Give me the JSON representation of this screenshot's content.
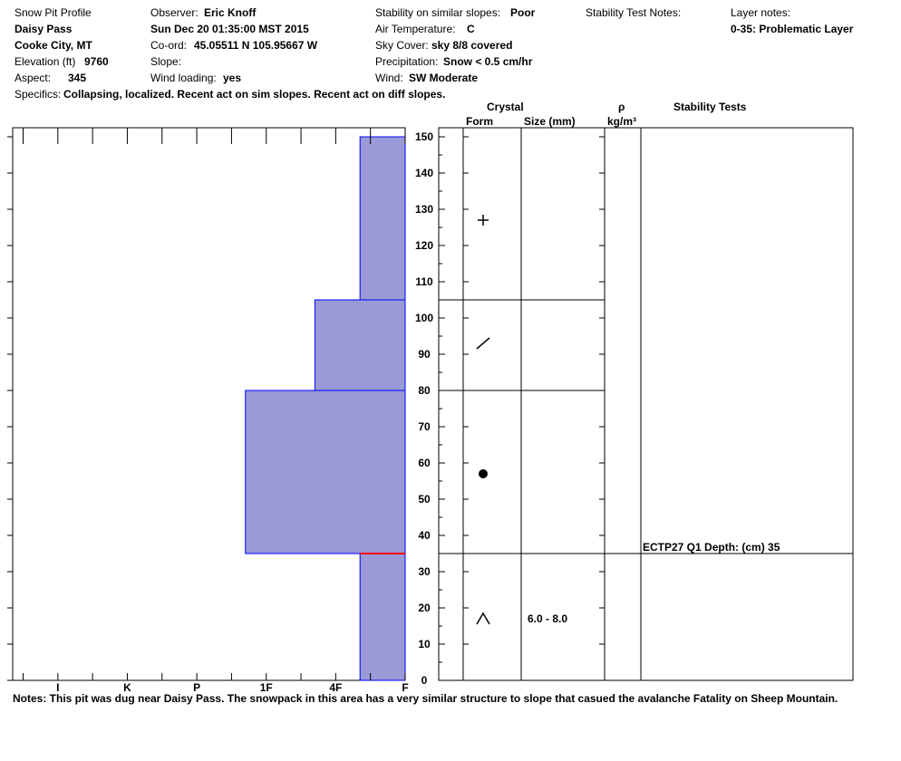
{
  "header": {
    "title": "Snow Pit Profile",
    "location_name": "Daisy Pass",
    "location_area": "Cooke City, MT",
    "elevation_label": "Elevation (ft)",
    "elevation_value": "9760",
    "aspect_label": "Aspect:",
    "aspect_value": "345",
    "observer_label": "Observer:",
    "observer_value": "Eric Knoff",
    "datetime": "Sun Dec 20 01:35:00 MST 2015",
    "coord_label": "Co-ord:",
    "coord_value": "45.05511 N 105.95667 W",
    "slope_label": "Slope:",
    "slope_value": "",
    "wind_loading_label": "Wind loading:",
    "wind_loading_value": "yes",
    "stability_label": "Stability on similar slopes:",
    "stability_value": "Poor",
    "air_temp_label": "Air Temperature:",
    "air_temp_value": "C",
    "sky_label": "Sky Cover:",
    "sky_value": "sky 8/8 covered",
    "precip_label": "Precipitation:",
    "precip_value": "Snow < 0.5 cm/hr",
    "wind_label": "Wind:",
    "wind_value": "SW Moderate",
    "stability_notes_label": "Stability Test Notes:",
    "layer_notes_label": "Layer notes:",
    "layer_notes_value": "0-35: Problematic Layer",
    "specifics_label": "Specifics:",
    "specifics_value": "Collapsing, localized. Recent act on sim slopes. Recent act on diff slopes."
  },
  "columns": {
    "crystal": "Crystal",
    "form": "Form",
    "size": "Size (mm)",
    "rho": "ρ",
    "density_unit": "kg/m³",
    "stability_tests": "Stability Tests"
  },
  "notes": "Notes:  This pit was dug near Daisy Pass. The snowpack in this area has a very similar structure to slope that casued the avalanche Fatality on Sheep Mountain.",
  "chart_data": {
    "type": "bar",
    "title": "Snow Pit Profile",
    "ylim": [
      0,
      150
    ],
    "y_ticks": [
      0,
      10,
      20,
      30,
      40,
      50,
      60,
      70,
      80,
      90,
      100,
      110,
      120,
      130,
      140,
      150
    ],
    "hardness_scale": [
      "I",
      "K",
      "P",
      "1F",
      "4F",
      "F"
    ],
    "hardness_scale_positions": [
      5,
      4,
      3,
      2,
      1,
      0
    ],
    "x_max": 5.65,
    "layers": [
      {
        "bottom": 0,
        "top": 35,
        "hardness": 0.65
      },
      {
        "bottom": 35,
        "top": 80,
        "hardness": 2.3
      },
      {
        "bottom": 80,
        "top": 105,
        "hardness": 1.3
      },
      {
        "bottom": 105,
        "top": 150,
        "hardness": 0.65
      }
    ],
    "layer_boundaries": [
      35,
      80,
      105
    ],
    "crystal_forms": [
      {
        "depth": 127,
        "icon": "plus-icon"
      },
      {
        "depth": 93,
        "icon": "slash-icon"
      },
      {
        "depth": 57,
        "icon": "dot-icon"
      },
      {
        "depth": 17,
        "icon": "caret-icon"
      }
    ],
    "grain_sizes": [
      {
        "depth": 17,
        "label": "6.0 - 8.0"
      }
    ],
    "stability_tests": [
      {
        "depth": 35,
        "label": "ECTP27 Q1 Depth: (cm) 35"
      }
    ],
    "problem_layer_depth": 35,
    "colors": {
      "fill": "#9a9ad6",
      "layer_line": "#0000ff",
      "problem_line": "#ff0000"
    }
  }
}
